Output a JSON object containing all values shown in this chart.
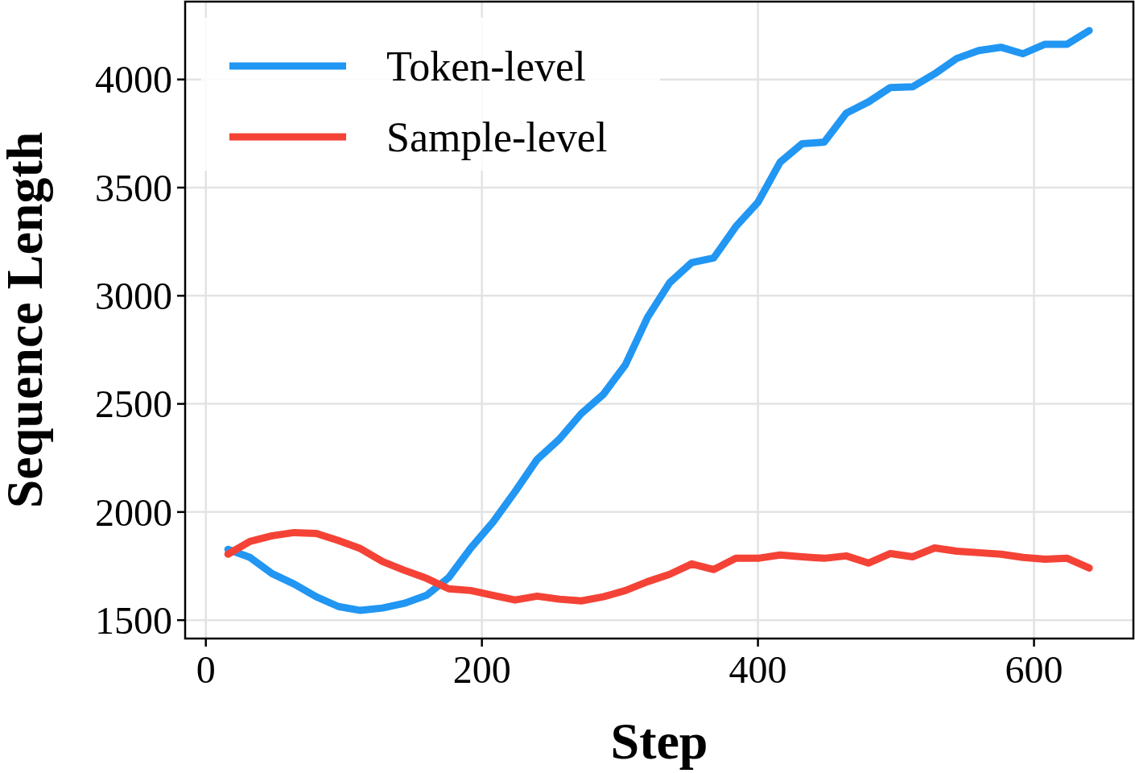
{
  "chart_data": {
    "type": "line",
    "xlabel": "Step",
    "ylabel": "Sequence Length",
    "x": [
      16,
      32,
      48,
      64,
      80,
      96,
      112,
      128,
      144,
      160,
      176,
      192,
      208,
      224,
      240,
      256,
      272,
      288,
      304,
      320,
      336,
      352,
      368,
      384,
      400,
      416,
      432,
      448,
      464,
      480,
      496,
      512,
      528,
      544,
      560,
      576,
      592,
      608,
      624,
      640
    ],
    "series": [
      {
        "name": "Token-level",
        "color": "#2196f3",
        "values": [
          1827,
          1790,
          1715,
          1667,
          1608,
          1563,
          1545,
          1556,
          1578,
          1615,
          1697,
          1834,
          1953,
          2094,
          2243,
          2336,
          2455,
          2544,
          2681,
          2900,
          3060,
          3153,
          3175,
          3320,
          3432,
          3617,
          3703,
          3710,
          3844,
          3896,
          3963,
          3966,
          4026,
          4097,
          4134,
          4149,
          4119,
          4163,
          4163,
          4226
        ]
      },
      {
        "name": "Sample-level",
        "color": "#f44336",
        "values": [
          1805,
          1864,
          1890,
          1905,
          1901,
          1868,
          1831,
          1771,
          1730,
          1693,
          1645,
          1637,
          1615,
          1593,
          1611,
          1597,
          1589,
          1608,
          1637,
          1678,
          1712,
          1760,
          1734,
          1786,
          1786,
          1801,
          1793,
          1786,
          1797,
          1764,
          1808,
          1793,
          1834,
          1819,
          1812,
          1805,
          1790,
          1782,
          1786,
          1741
        ]
      }
    ],
    "xlim": [
      -15,
      672
    ],
    "ylim": [
      1415,
      4360
    ],
    "xticks": [
      0,
      200,
      400,
      600
    ],
    "yticks": [
      1500,
      2000,
      2500,
      3000,
      3500,
      4000
    ],
    "grid": true,
    "legend": "top left",
    "line_style": "solid",
    "marker": "none"
  }
}
